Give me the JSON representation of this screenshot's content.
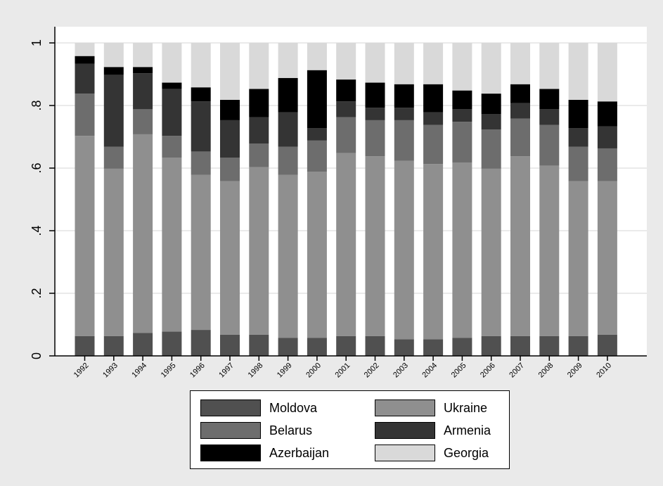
{
  "chart_data": {
    "type": "bar",
    "stacked": true,
    "categories": [
      "1992",
      "1993",
      "1994",
      "1995",
      "1996",
      "1997",
      "1998",
      "1999",
      "2000",
      "2001",
      "2002",
      "2003",
      "2004",
      "2005",
      "2006",
      "2007",
      "2008",
      "2009",
      "2010"
    ],
    "series": [
      {
        "name": "Moldova",
        "color": "#505050",
        "values": [
          0.063,
          0.063,
          0.073,
          0.078,
          0.083,
          0.068,
          0.068,
          0.058,
          0.058,
          0.063,
          0.063,
          0.053,
          0.053,
          0.058,
          0.063,
          0.063,
          0.063,
          0.063,
          0.068
        ]
      },
      {
        "name": "Ukraine",
        "color": "#8f8f8f",
        "values": [
          0.64,
          0.535,
          0.635,
          0.555,
          0.495,
          0.49,
          0.535,
          0.52,
          0.53,
          0.585,
          0.575,
          0.57,
          0.56,
          0.56,
          0.535,
          0.575,
          0.545,
          0.495,
          0.49
        ]
      },
      {
        "name": "Belarus",
        "color": "#6d6d6d",
        "values": [
          0.135,
          0.07,
          0.08,
          0.07,
          0.075,
          0.075,
          0.075,
          0.09,
          0.1,
          0.115,
          0.115,
          0.13,
          0.125,
          0.13,
          0.125,
          0.12,
          0.13,
          0.11,
          0.105
        ]
      },
      {
        "name": "Armenia",
        "color": "#343434",
        "values": [
          0.095,
          0.23,
          0.115,
          0.15,
          0.16,
          0.12,
          0.085,
          0.11,
          0.04,
          0.05,
          0.04,
          0.04,
          0.04,
          0.04,
          0.05,
          0.05,
          0.05,
          0.06,
          0.07
        ]
      },
      {
        "name": "Azerbaijan",
        "color": "#000000",
        "values": [
          0.025,
          0.025,
          0.02,
          0.02,
          0.045,
          0.065,
          0.09,
          0.11,
          0.185,
          0.07,
          0.08,
          0.075,
          0.09,
          0.06,
          0.065,
          0.06,
          0.065,
          0.09,
          0.08
        ]
      },
      {
        "name": "Georgia",
        "color": "#d9d9d9",
        "values": [
          0.042,
          0.077,
          0.077,
          0.127,
          0.142,
          0.182,
          0.147,
          0.112,
          0.087,
          0.117,
          0.127,
          0.132,
          0.132,
          0.152,
          0.162,
          0.132,
          0.147,
          0.182,
          0.187
        ]
      }
    ],
    "ylim": [
      0,
      1
    ],
    "yticks": [
      0,
      0.2,
      0.4,
      0.6,
      0.8,
      1
    ],
    "ytick_labels": [
      "0",
      ".2",
      ".4",
      ".6",
      ".8",
      "1"
    ],
    "grid": true,
    "legend_position": "bottom"
  }
}
